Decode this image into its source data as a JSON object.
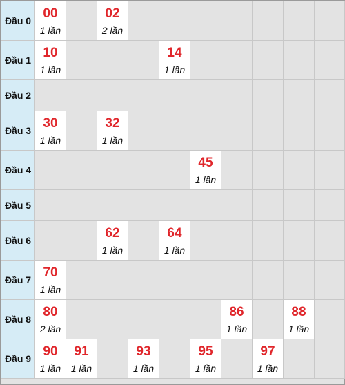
{
  "rows": [
    {
      "label": "Đầu 0",
      "cells": [
        {
          "num": "00",
          "count": "1 lần"
        },
        null,
        {
          "num": "02",
          "count": "2 lần"
        },
        null,
        null,
        null,
        null,
        null,
        null,
        null
      ]
    },
    {
      "label": "Đầu 1",
      "cells": [
        {
          "num": "10",
          "count": "1 lần"
        },
        null,
        null,
        null,
        {
          "num": "14",
          "count": "1 lần"
        },
        null,
        null,
        null,
        null,
        null
      ]
    },
    {
      "label": "Đầu 2",
      "cells": [
        null,
        null,
        null,
        null,
        null,
        null,
        null,
        null,
        null,
        null
      ]
    },
    {
      "label": "Đầu 3",
      "cells": [
        {
          "num": "30",
          "count": "1 lần"
        },
        null,
        {
          "num": "32",
          "count": "1 lần"
        },
        null,
        null,
        null,
        null,
        null,
        null,
        null
      ]
    },
    {
      "label": "Đầu 4",
      "cells": [
        null,
        null,
        null,
        null,
        null,
        {
          "num": "45",
          "count": "1 lần"
        },
        null,
        null,
        null,
        null
      ]
    },
    {
      "label": "Đầu 5",
      "cells": [
        null,
        null,
        null,
        null,
        null,
        null,
        null,
        null,
        null,
        null
      ]
    },
    {
      "label": "Đầu 6",
      "cells": [
        null,
        null,
        {
          "num": "62",
          "count": "1 lần"
        },
        null,
        {
          "num": "64",
          "count": "1 lần"
        },
        null,
        null,
        null,
        null,
        null
      ]
    },
    {
      "label": "Đầu 7",
      "cells": [
        {
          "num": "70",
          "count": "1 lần"
        },
        null,
        null,
        null,
        null,
        null,
        null,
        null,
        null,
        null
      ]
    },
    {
      "label": "Đầu 8",
      "cells": [
        {
          "num": "80",
          "count": "2 lần"
        },
        null,
        null,
        null,
        null,
        null,
        {
          "num": "86",
          "count": "1 lần"
        },
        null,
        {
          "num": "88",
          "count": "1 lần"
        },
        null
      ]
    },
    {
      "label": "Đầu 9",
      "cells": [
        {
          "num": "90",
          "count": "1 lần"
        },
        {
          "num": "91",
          "count": "1 lần"
        },
        null,
        {
          "num": "93",
          "count": "1 lần"
        },
        null,
        {
          "num": "95",
          "count": "1 lần"
        },
        null,
        {
          "num": "97",
          "count": "1 lần"
        },
        null,
        null
      ]
    }
  ],
  "colors": {
    "number": "#e0262b",
    "header_bg": "#d6ecf6",
    "empty_bg": "#e3e3e3",
    "hit_bg": "#ffffff"
  }
}
